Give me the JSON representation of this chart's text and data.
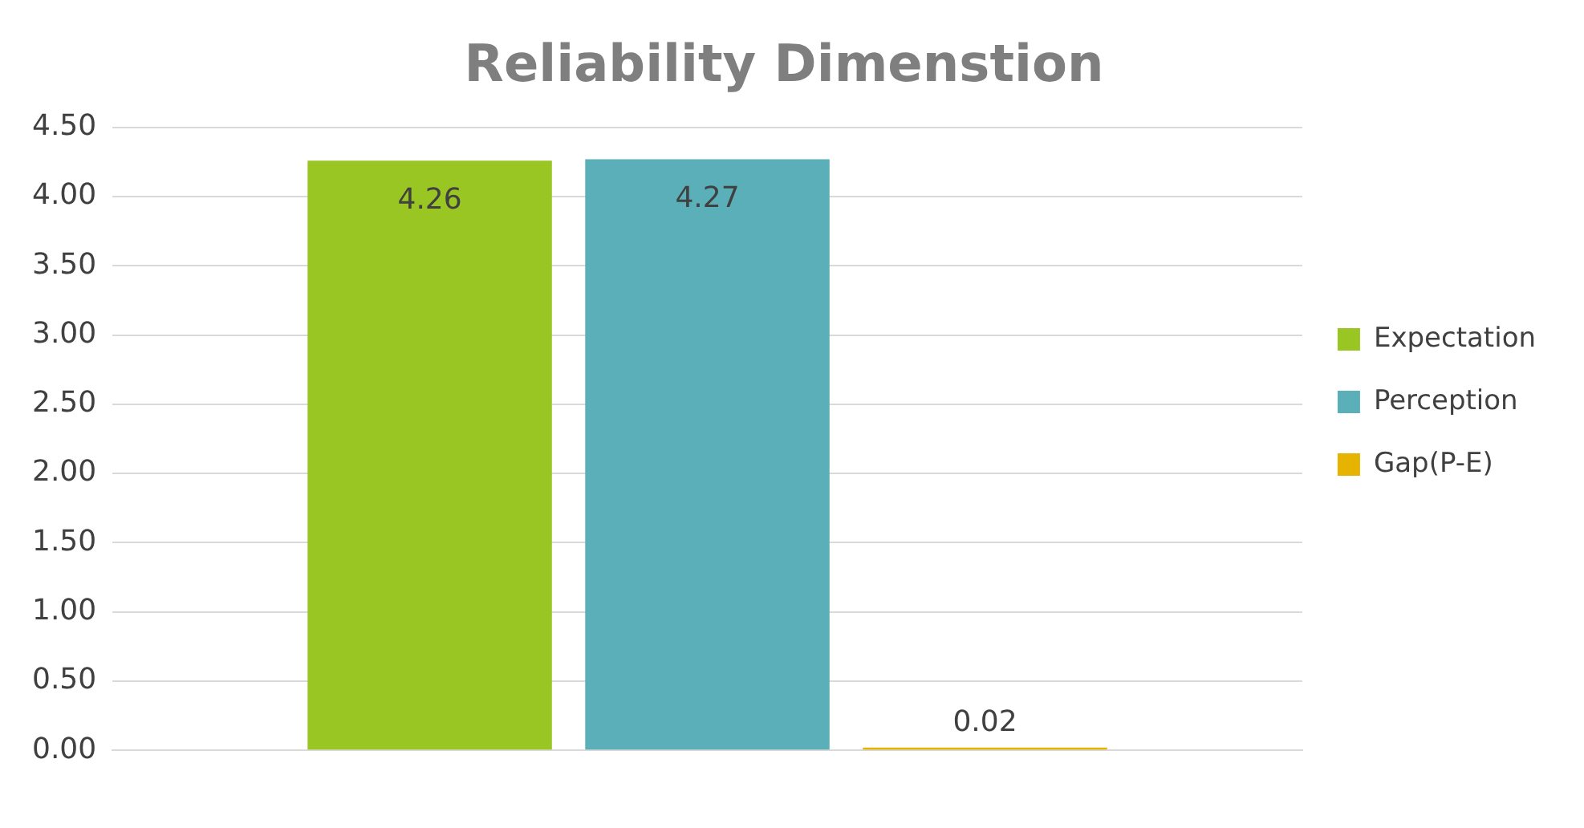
{
  "chart_data": {
    "type": "bar",
    "title": "Reliability Dimenstion",
    "categories": [
      null
    ],
    "series": [
      {
        "name": "Expectation",
        "color": "#9ac623",
        "values": [
          4.26
        ]
      },
      {
        "name": "Perception",
        "color": "#5aafb8",
        "values": [
          4.27
        ]
      },
      {
        "name": "Gap(P-E)",
        "color": "#e6b400",
        "values": [
          0.02
        ]
      }
    ],
    "ylim": [
      0,
      4.5
    ],
    "yticks": [
      {
        "value": 0,
        "label": "0.00"
      },
      {
        "value": 0.5,
        "label": "0.50"
      },
      {
        "value": 1,
        "label": "1.00"
      },
      {
        "value": 1.5,
        "label": "1.50"
      },
      {
        "value": 2,
        "label": "2.00"
      },
      {
        "value": 2.5,
        "label": "2.50"
      },
      {
        "value": 3,
        "label": "3.00"
      },
      {
        "value": 3.5,
        "label": "3.50"
      },
      {
        "value": 4,
        "label": "4.00"
      },
      {
        "value": 4.5,
        "label": "4.50"
      }
    ],
    "grid": "y",
    "legend": "right",
    "data_labels": true
  }
}
